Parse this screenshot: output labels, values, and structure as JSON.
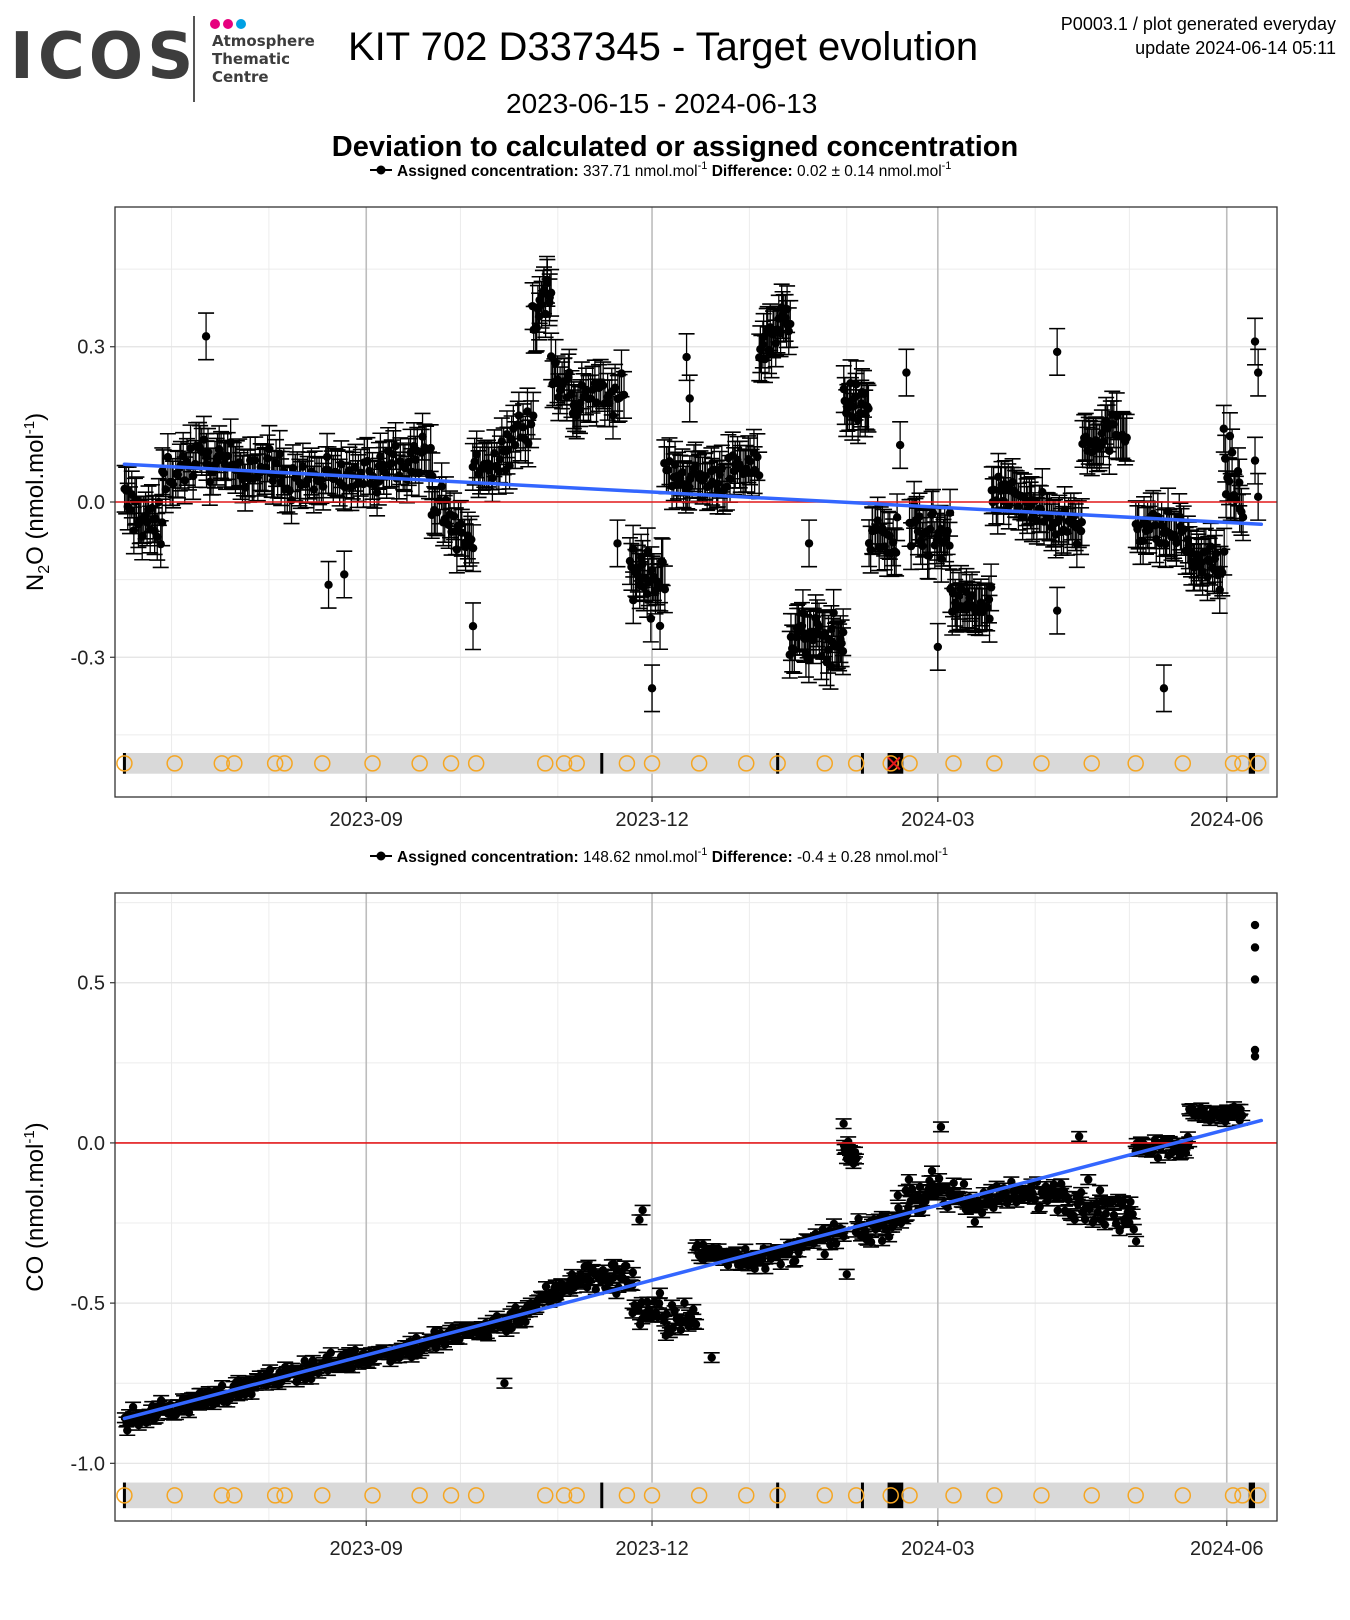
{
  "header": {
    "logo_text": "ICOS",
    "logo_sub_lines": [
      "Atmosphere",
      "Thematic",
      "Centre"
    ],
    "logo_dot_colors": [
      "#e6007e",
      "#e6007e",
      "#00a0e3"
    ],
    "title": "KIT 702 D337345 - Target evolution",
    "date_range": "2023-06-15 - 2024-06-13",
    "subtitle": "Deviation to calculated or assigned concentration",
    "plot_code": "P0003.1 / plot generated everyday",
    "update": "update  2024-06-14 05:11"
  },
  "colors": {
    "points": "#000000",
    "trend": "#3366ff",
    "zero_line": "#e41a1c",
    "flag_band": "#d9d9d9",
    "flag_circle": "#f5a623",
    "flag_cross": "#e41a1c",
    "grid_major": "#bdbdbd",
    "grid_minor": "#ececec"
  },
  "chart_data": [
    {
      "type": "scatter",
      "legend": {
        "assigned_label": "Assigned concentration:",
        "assigned_value": "337.71 nmol.mol",
        "difference_label": "Difference:",
        "difference_value": "0.02 ± 0.14 nmol.mol"
      },
      "ylabel": "N2O (nmol.mol-1)",
      "ylabel_parts": {
        "a": "N",
        "sub": "2",
        "b": "O (nmol.mol",
        "sup": "-1",
        "c": ")"
      },
      "x_range": [
        "2023-06-13",
        "2024-06-17"
      ],
      "ylim": [
        -0.57,
        0.57
      ],
      "yticks": [
        {
          "v": 0.3,
          "label": "0.3"
        },
        {
          "v": 0.0,
          "label": "0.0"
        },
        {
          "v": -0.3,
          "label": "-0.3"
        }
      ],
      "xticks": [
        {
          "date": "2023-09-01",
          "label": "2023-09"
        },
        {
          "date": "2023-12-01",
          "label": "2023-12"
        },
        {
          "date": "2024-03-01",
          "label": "2024-03"
        },
        {
          "date": "2024-06-01",
          "label": "2024-06"
        }
      ],
      "error_bar": 0.045,
      "segments": [
        [
          "2023-06-16",
          "2023-06-28",
          0.0,
          -0.06,
          0.04,
          26
        ],
        [
          "2023-06-28",
          "2023-07-12",
          0.05,
          0.09,
          0.03,
          24
        ],
        [
          "2023-07-12",
          "2023-08-05",
          0.08,
          0.06,
          0.03,
          45
        ],
        [
          "2023-08-05",
          "2023-09-05",
          0.04,
          0.05,
          0.03,
          50
        ],
        [
          "2023-09-05",
          "2023-09-22",
          0.08,
          0.09,
          0.03,
          30
        ],
        [
          "2023-09-22",
          "2023-10-05",
          0.0,
          -0.09,
          0.04,
          24
        ],
        [
          "2023-10-05",
          "2023-10-16",
          0.07,
          0.08,
          0.03,
          20
        ],
        [
          "2023-10-16",
          "2023-10-24",
          0.1,
          0.18,
          0.04,
          14
        ],
        [
          "2023-10-24",
          "2023-10-30",
          0.35,
          0.42,
          0.04,
          16
        ],
        [
          "2023-10-30",
          "2023-11-08",
          0.26,
          0.18,
          0.04,
          20
        ],
        [
          "2023-11-08",
          "2023-11-22",
          0.21,
          0.2,
          0.03,
          22
        ],
        [
          "2023-11-24",
          "2023-12-05",
          -0.12,
          -0.17,
          0.05,
          28
        ],
        [
          "2023-12-05",
          "2023-12-22",
          0.06,
          0.04,
          0.03,
          32
        ],
        [
          "2023-12-22",
          "2024-01-04",
          0.05,
          0.07,
          0.03,
          24
        ],
        [
          "2024-01-04",
          "2024-01-14",
          0.3,
          0.36,
          0.03,
          26
        ],
        [
          "2024-01-14",
          "2024-01-31",
          -0.26,
          -0.27,
          0.04,
          44
        ],
        [
          "2024-01-31",
          "2024-02-08",
          0.2,
          0.18,
          0.03,
          20
        ],
        [
          "2024-02-08",
          "2024-02-17",
          -0.06,
          -0.08,
          0.04,
          20
        ],
        [
          "2024-02-21",
          "2024-03-05",
          -0.06,
          -0.08,
          0.04,
          30
        ],
        [
          "2024-03-05",
          "2024-03-18",
          -0.19,
          -0.21,
          0.03,
          30
        ],
        [
          "2024-03-18",
          "2024-03-31",
          0.01,
          0.01,
          0.03,
          28
        ],
        [
          "2024-03-31",
          "2024-04-16",
          -0.02,
          -0.05,
          0.03,
          30
        ],
        [
          "2024-04-16",
          "2024-04-30",
          0.12,
          0.14,
          0.03,
          30
        ],
        [
          "2024-05-03",
          "2024-05-20",
          -0.04,
          -0.07,
          0.03,
          32
        ],
        [
          "2024-05-20",
          "2024-05-31",
          -0.11,
          -0.13,
          0.03,
          26
        ],
        [
          "2024-05-31",
          "2024-06-06",
          0.08,
          0.0,
          0.05,
          16
        ]
      ],
      "points": [
        [
          "2023-07-12",
          0.32
        ],
        [
          "2023-08-20",
          -0.16
        ],
        [
          "2023-08-25",
          -0.14
        ],
        [
          "2023-10-05",
          -0.24
        ],
        [
          "2023-11-20",
          -0.08
        ],
        [
          "2023-12-01",
          -0.36
        ],
        [
          "2023-12-12",
          0.28
        ],
        [
          "2023-12-13",
          0.2
        ],
        [
          "2024-01-20",
          -0.08
        ],
        [
          "2024-02-20",
          0.25
        ],
        [
          "2024-02-18",
          0.11
        ],
        [
          "2024-03-01",
          -0.28
        ],
        [
          "2024-04-08",
          0.29
        ],
        [
          "2024-04-08",
          -0.21
        ],
        [
          "2024-05-12",
          -0.36
        ],
        [
          "2024-06-10",
          0.31
        ],
        [
          "2024-06-11",
          0.25
        ],
        [
          "2024-06-10",
          0.08
        ],
        [
          "2024-06-11",
          0.01
        ]
      ],
      "trend": {
        "start": [
          "2023-06-16",
          0.073
        ],
        "end": [
          "2024-06-12",
          -0.043
        ]
      },
      "flag_y": -0.505,
      "flag_band": [
        -0.525,
        -0.485
      ],
      "flag_circles": [
        "2023-06-16",
        "2023-07-02",
        "2023-07-17",
        "2023-07-21",
        "2023-08-03",
        "2023-08-06",
        "2023-08-18",
        "2023-09-03",
        "2023-09-18",
        "2023-09-28",
        "2023-10-06",
        "2023-10-28",
        "2023-11-03",
        "2023-11-07",
        "2023-11-23",
        "2023-12-01",
        "2023-12-16",
        "2023-12-31",
        "2024-01-10",
        "2024-01-25",
        "2024-02-04",
        "2024-02-15",
        "2024-02-21",
        "2024-03-06",
        "2024-03-19",
        "2024-04-03",
        "2024-04-19",
        "2024-05-03",
        "2024-05-18",
        "2024-06-03",
        "2024-06-06",
        "2024-06-11"
      ],
      "flag_lines": [
        "2023-06-16",
        "2023-11-15",
        "2024-01-10",
        "2024-02-06"
      ],
      "flag_blocks": [
        [
          "2024-02-14",
          "2024-02-19"
        ],
        [
          "2024-06-08",
          "2024-06-10"
        ]
      ],
      "flag_crosses": [
        "2024-02-16"
      ]
    },
    {
      "type": "scatter",
      "legend": {
        "assigned_label": "Assigned concentration:",
        "assigned_value": "148.62 nmol.mol",
        "difference_label": "Difference:",
        "difference_value": "-0.4 ± 0.28 nmol.mol"
      },
      "ylabel": "CO (nmol.mol-1)",
      "ylabel_parts": {
        "a": "CO (nmol.mol",
        "sub": "",
        "b": "",
        "sup": "-1",
        "c": ")"
      },
      "x_range": [
        "2023-06-13",
        "2024-06-17"
      ],
      "ylim": [
        -1.18,
        0.78
      ],
      "yticks": [
        {
          "v": 0.5,
          "label": "0.5"
        },
        {
          "v": 0.0,
          "label": "0.0"
        },
        {
          "v": -0.5,
          "label": "-0.5"
        },
        {
          "v": -1.0,
          "label": "-1.0"
        }
      ],
      "xticks": [
        {
          "date": "2023-09-01",
          "label": "2023-09"
        },
        {
          "date": "2023-12-01",
          "label": "2023-12"
        },
        {
          "date": "2024-03-01",
          "label": "2024-03"
        },
        {
          "date": "2024-06-01",
          "label": "2024-06"
        }
      ],
      "error_bar": 0.015,
      "segments": [
        [
          "2023-06-16",
          "2023-07-15",
          -0.87,
          -0.79,
          0.025,
          60
        ],
        [
          "2023-07-15",
          "2023-08-15",
          -0.79,
          -0.7,
          0.025,
          60
        ],
        [
          "2023-08-15",
          "2023-09-15",
          -0.7,
          -0.64,
          0.025,
          60
        ],
        [
          "2023-09-15",
          "2023-10-15",
          -0.64,
          -0.56,
          0.03,
          60
        ],
        [
          "2023-10-15",
          "2023-11-05",
          -0.56,
          -0.44,
          0.03,
          45
        ],
        [
          "2023-11-05",
          "2023-11-25",
          -0.42,
          -0.42,
          0.04,
          45
        ],
        [
          "2023-11-25",
          "2023-12-15",
          -0.52,
          -0.56,
          0.05,
          40
        ],
        [
          "2023-12-15",
          "2024-01-05",
          -0.34,
          -0.36,
          0.03,
          40
        ],
        [
          "2024-01-05",
          "2024-01-31",
          -0.37,
          -0.28,
          0.03,
          45
        ],
        [
          "2024-01-31",
          "2024-02-04",
          -0.02,
          -0.05,
          0.02,
          14
        ],
        [
          "2024-02-04",
          "2024-02-20",
          -0.28,
          -0.22,
          0.04,
          35
        ],
        [
          "2024-02-20",
          "2024-03-10",
          -0.16,
          -0.17,
          0.05,
          40
        ],
        [
          "2024-03-10",
          "2024-04-10",
          -0.19,
          -0.15,
          0.04,
          55
        ],
        [
          "2024-04-10",
          "2024-05-03",
          -0.16,
          -0.24,
          0.05,
          45
        ],
        [
          "2024-05-03",
          "2024-05-20",
          0.0,
          -0.01,
          0.03,
          35
        ],
        [
          "2024-05-20",
          "2024-06-06",
          0.09,
          0.09,
          0.02,
          35
        ]
      ],
      "points": [
        [
          "2023-10-15",
          -0.75
        ],
        [
          "2023-11-28",
          -0.21
        ],
        [
          "2023-11-27",
          -0.24
        ],
        [
          "2024-01-31",
          0.06
        ],
        [
          "2024-03-02",
          0.05
        ],
        [
          "2024-04-15",
          0.02
        ],
        [
          "2023-12-20",
          -0.67
        ],
        [
          "2024-02-01",
          -0.41
        ],
        [
          "2024-06-10",
          0.68
        ],
        [
          "2024-06-10",
          0.61
        ],
        [
          "2024-06-10",
          0.51
        ],
        [
          "2024-06-10",
          0.29
        ],
        [
          "2024-06-10",
          0.27
        ]
      ],
      "point_no_error_after": "2024-06-09",
      "trend": {
        "start": [
          "2023-06-16",
          -0.86
        ],
        "end": [
          "2024-06-12",
          0.07
        ]
      },
      "flag_y": -1.1,
      "flag_band": [
        -1.14,
        -1.06
      ],
      "flag_circles": [
        "2023-06-16",
        "2023-07-02",
        "2023-07-17",
        "2023-07-21",
        "2023-08-03",
        "2023-08-06",
        "2023-08-18",
        "2023-09-03",
        "2023-09-18",
        "2023-09-28",
        "2023-10-06",
        "2023-10-28",
        "2023-11-03",
        "2023-11-07",
        "2023-11-23",
        "2023-12-01",
        "2023-12-16",
        "2023-12-31",
        "2024-01-10",
        "2024-01-25",
        "2024-02-04",
        "2024-02-15",
        "2024-02-21",
        "2024-03-06",
        "2024-03-19",
        "2024-04-03",
        "2024-04-19",
        "2024-05-03",
        "2024-05-18",
        "2024-06-03",
        "2024-06-06",
        "2024-06-11"
      ],
      "flag_lines": [
        "2023-06-16",
        "2023-11-15",
        "2024-01-10",
        "2024-02-06"
      ],
      "flag_blocks": [
        [
          "2024-02-14",
          "2024-02-19"
        ],
        [
          "2024-06-08",
          "2024-06-10"
        ]
      ],
      "flag_crosses": []
    }
  ]
}
